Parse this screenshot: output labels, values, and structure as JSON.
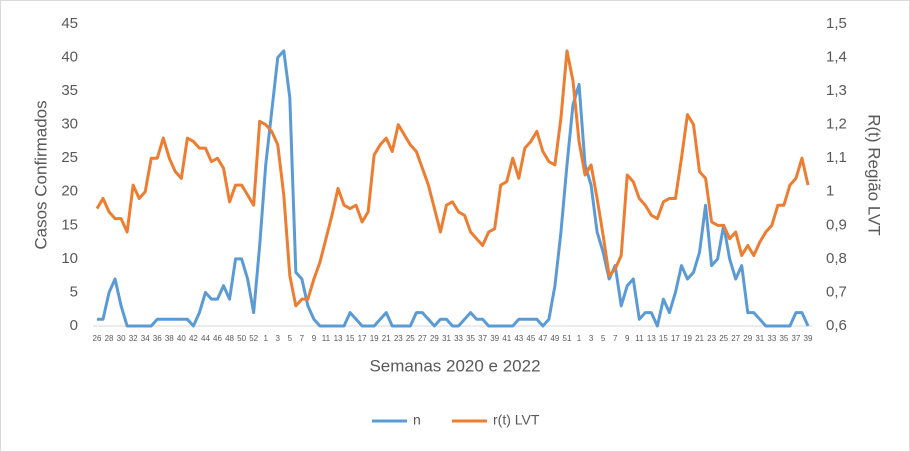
{
  "chart_data": {
    "type": "line",
    "x_label": "Semanas 2020 e 2022",
    "y_label": "Casos Confirmados",
    "y2_label": "R(t) Região LVT",
    "categories": [
      "26",
      null,
      "28",
      null,
      "30",
      null,
      "32",
      null,
      "34",
      null,
      "36",
      null,
      "38",
      null,
      "40",
      null,
      "42",
      null,
      "44",
      null,
      "46",
      null,
      "48",
      null,
      "50",
      null,
      "52",
      null,
      "1",
      null,
      "3",
      null,
      "5",
      null,
      "7",
      null,
      "9",
      null,
      "11",
      null,
      "13",
      null,
      "15",
      null,
      "17",
      null,
      "19",
      null,
      "21",
      null,
      "23",
      null,
      "25",
      null,
      "27",
      null,
      "29",
      null,
      "31",
      null,
      "33",
      null,
      "35",
      null,
      "37",
      null,
      "39",
      null,
      "41",
      null,
      "43",
      null,
      "45",
      null,
      "47",
      null,
      "49",
      null,
      "51",
      null,
      "1",
      null,
      "3",
      null,
      "5",
      null,
      "7",
      null,
      "9",
      null,
      "11",
      null,
      "13",
      null,
      "15",
      null,
      "17",
      null,
      "19",
      null,
      "21",
      null,
      "23",
      null,
      "25",
      null,
      "27",
      null,
      "29",
      null,
      "31",
      null,
      "33",
      null,
      "35",
      null,
      "37",
      null,
      "39"
    ],
    "series": [
      {
        "name": "n",
        "color": "#5b9bd5",
        "values": [
          1,
          1,
          5,
          7,
          3,
          0,
          0,
          0,
          0,
          0,
          1,
          1,
          1,
          1,
          1,
          1,
          0,
          2,
          5,
          4,
          4,
          6,
          4,
          10,
          10,
          7,
          2,
          12,
          24,
          32,
          40,
          41,
          34,
          8,
          7,
          3,
          1,
          0,
          0,
          0,
          0,
          0,
          2,
          1,
          0,
          0,
          0,
          1,
          2,
          0,
          0,
          0,
          0,
          2,
          2,
          1,
          0,
          1,
          1,
          0,
          0,
          1,
          2,
          1,
          1,
          0,
          0,
          0,
          0,
          0,
          1,
          1,
          1,
          1,
          0,
          1,
          6,
          14,
          24,
          33,
          36,
          24,
          21,
          14,
          11,
          7,
          9,
          3,
          6,
          7,
          1,
          2,
          2,
          0,
          4,
          2,
          5,
          9,
          7,
          8,
          11,
          18,
          9,
          10,
          15,
          10,
          7,
          9,
          2,
          2,
          1,
          0,
          0,
          0,
          0,
          0,
          2,
          2,
          0
        ]
      },
      {
        "name": "r(t) LVT",
        "color": "#ed7d31",
        "axis": "y2",
        "values": [
          0.95,
          0.98,
          0.94,
          0.92,
          0.92,
          0.88,
          1.02,
          0.98,
          1.0,
          1.1,
          1.1,
          1.16,
          1.1,
          1.06,
          1.04,
          1.16,
          1.15,
          1.13,
          1.13,
          1.09,
          1.1,
          1.07,
          0.97,
          1.02,
          1.02,
          0.99,
          0.96,
          1.21,
          1.2,
          1.18,
          1.14,
          0.99,
          0.75,
          0.66,
          0.68,
          0.68,
          0.74,
          0.79,
          0.86,
          0.93,
          1.01,
          0.96,
          0.95,
          0.96,
          0.91,
          0.94,
          1.11,
          1.14,
          1.16,
          1.12,
          1.2,
          1.17,
          1.14,
          1.12,
          1.07,
          1.02,
          0.95,
          0.88,
          0.96,
          0.97,
          0.94,
          0.93,
          0.88,
          0.86,
          0.84,
          0.88,
          0.89,
          1.02,
          1.03,
          1.1,
          1.04,
          1.13,
          1.15,
          1.18,
          1.12,
          1.09,
          1.08,
          1.22,
          1.42,
          1.33,
          1.15,
          1.05,
          1.08,
          0.98,
          0.87,
          0.75,
          0.77,
          0.81,
          1.05,
          1.03,
          0.98,
          0.96,
          0.93,
          0.92,
          0.97,
          0.98,
          0.98,
          1.1,
          1.23,
          1.2,
          1.06,
          1.04,
          0.91,
          0.9,
          0.9,
          0.86,
          0.88,
          0.81,
          0.84,
          0.81,
          0.85,
          0.88,
          0.9,
          0.96,
          0.96,
          1.02,
          1.04,
          1.1,
          1.02
        ]
      }
    ],
    "ylim": [
      0,
      45
    ],
    "yticks": [
      0,
      5,
      10,
      15,
      20,
      25,
      30,
      35,
      40,
      45
    ],
    "y2lim": [
      0.6,
      1.5
    ],
    "y2ticks": [
      {
        "value": 0.6,
        "label": "0,6"
      },
      {
        "value": 0.7,
        "label": "0,7"
      },
      {
        "value": 0.8,
        "label": "0,8"
      },
      {
        "value": 0.9,
        "label": "0,9"
      },
      1,
      {
        "value": 1.1,
        "label": "1,1"
      },
      {
        "value": 1.2,
        "label": "1,2"
      },
      {
        "value": 1.3,
        "label": "1,3"
      },
      {
        "value": 1.4,
        "label": "1,4"
      },
      {
        "value": 1.5,
        "label": "1,5"
      }
    ],
    "grid": false,
    "legend": "bottom"
  }
}
